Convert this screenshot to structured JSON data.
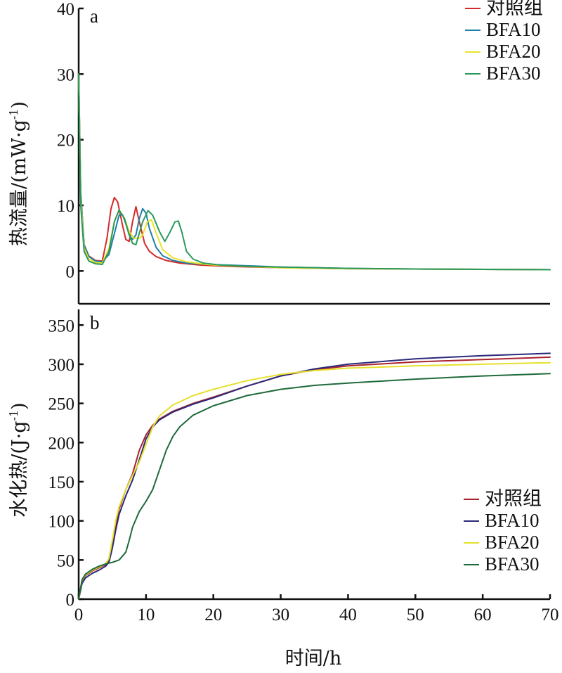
{
  "chart_data": [
    {
      "type": "line",
      "panel_label": "a",
      "ylabel": "热流量/(mW·g",
      "ylabel_sup": "-1",
      "ylabel_close": ")",
      "xlim": [
        0,
        70
      ],
      "ylim": [
        -5,
        40
      ],
      "yticks": [
        0,
        10,
        20,
        30,
        40
      ],
      "legend_position": "top-right",
      "series": [
        {
          "name": "对照组",
          "color": "#d62a2a",
          "x": [
            0,
            0.3,
            0.8,
            1.5,
            2.5,
            3.5,
            4.2,
            4.8,
            5.3,
            5.8,
            6.5,
            7.0,
            7.5,
            8.0,
            8.5,
            9.0,
            9.8,
            10.5,
            11.5,
            13,
            15,
            18,
            22,
            30,
            40,
            50,
            60,
            70
          ],
          "y": [
            30,
            12,
            4,
            2.3,
            1.6,
            1.5,
            5,
            9.5,
            11.2,
            10.5,
            7,
            4.8,
            4.5,
            7.5,
            9.8,
            7.5,
            4.2,
            3.0,
            2.2,
            1.6,
            1.2,
            0.9,
            0.7,
            0.5,
            0.35,
            0.3,
            0.25,
            0.2
          ]
        },
        {
          "name": "BFA10",
          "color": "#1f7fa8",
          "x": [
            0,
            0.3,
            0.8,
            1.5,
            2.5,
            3.5,
            4.5,
            5.5,
            6.0,
            6.5,
            7.0,
            7.5,
            8.0,
            8.5,
            9.0,
            9.5,
            10.0,
            10.5,
            11.5,
            12.5,
            14,
            16,
            19,
            22,
            30,
            40,
            50,
            60,
            70
          ],
          "y": [
            30,
            12,
            4,
            2.2,
            1.5,
            1.4,
            2.5,
            6.5,
            8.5,
            8.6,
            7.2,
            5.5,
            4.8,
            5.5,
            8.0,
            9.5,
            8.8,
            6.5,
            3.6,
            2.3,
            1.6,
            1.2,
            1.0,
            0.9,
            0.6,
            0.4,
            0.3,
            0.25,
            0.2
          ]
        },
        {
          "name": "BFA20",
          "color": "#e8e32a",
          "x": [
            0,
            0.3,
            0.8,
            1.5,
            2.5,
            3.5,
            4.5,
            5.3,
            6.0,
            6.8,
            7.5,
            8.2,
            9.0,
            9.5,
            10.2,
            10.8,
            11.5,
            12.5,
            14,
            16,
            19,
            22,
            30,
            40,
            50,
            60,
            70
          ],
          "y": [
            30,
            11,
            3.5,
            1.8,
            1.3,
            1.2,
            3.5,
            7.5,
            9.3,
            8.0,
            6.0,
            5.0,
            5.0,
            5.5,
            7.5,
            7.8,
            5.8,
            3.2,
            2.0,
            1.4,
            1.0,
            0.8,
            0.5,
            0.35,
            0.3,
            0.25,
            0.2
          ]
        },
        {
          "name": "BFA30",
          "color": "#2a9a5a",
          "x": [
            0,
            0.3,
            0.8,
            1.5,
            2.5,
            3.5,
            4.5,
            5.3,
            6.0,
            6.8,
            7.5,
            8.0,
            8.5,
            9.5,
            10.3,
            11.0,
            12.0,
            12.8,
            13.5,
            14.3,
            14.8,
            15.3,
            16.0,
            17.0,
            18.5,
            21,
            25,
            30,
            40,
            50,
            60,
            70
          ],
          "y": [
            30,
            10,
            3.0,
            1.5,
            1.1,
            1.0,
            3.0,
            7.5,
            9.3,
            8.0,
            5.5,
            4.2,
            4.0,
            7.5,
            9.2,
            8.5,
            6.0,
            4.5,
            5.8,
            7.5,
            7.6,
            6.0,
            3.0,
            1.8,
            1.2,
            0.9,
            0.7,
            0.6,
            0.4,
            0.3,
            0.25,
            0.2
          ]
        }
      ]
    },
    {
      "type": "line",
      "panel_label": "b",
      "ylabel": "水化热/(J·g",
      "ylabel_sup": "-1",
      "ylabel_close": ")",
      "xlabel": "时间/h",
      "xlim": [
        0,
        70
      ],
      "xticks": [
        0,
        10,
        20,
        30,
        40,
        50,
        60,
        70
      ],
      "ylim": [
        0,
        370
      ],
      "yticks": [
        0,
        50,
        100,
        150,
        200,
        250,
        300,
        350
      ],
      "legend_position": "bottom-right",
      "series": [
        {
          "name": "对照组",
          "color": "#a8232f",
          "x": [
            0,
            0.5,
            1,
            2,
            3,
            4,
            4.5,
            5,
            5.5,
            6,
            7,
            8,
            9,
            10,
            11,
            12,
            14,
            17,
            20,
            25,
            30,
            35,
            40,
            50,
            60,
            70
          ],
          "y": [
            0,
            22,
            30,
            36,
            40,
            44,
            50,
            70,
            95,
            115,
            140,
            160,
            190,
            210,
            222,
            230,
            240,
            250,
            258,
            272,
            285,
            293,
            298,
            303,
            306,
            309
          ]
        },
        {
          "name": "BFA10",
          "color": "#2a2a7a",
          "x": [
            0,
            0.5,
            1,
            2,
            3,
            4,
            4.5,
            5,
            5.5,
            6,
            7,
            8,
            9,
            10,
            11,
            12,
            14,
            17,
            20,
            25,
            30,
            35,
            40,
            50,
            60,
            70
          ],
          "y": [
            0,
            20,
            27,
            33,
            37,
            42,
            47,
            65,
            88,
            108,
            132,
            152,
            178,
            205,
            220,
            229,
            239,
            249,
            257,
            272,
            285,
            294,
            300,
            307,
            311,
            314
          ]
        },
        {
          "name": "BFA20",
          "color": "#e6e02a",
          "x": [
            0,
            0.5,
            1,
            2,
            3,
            4,
            4.5,
            5,
            5.5,
            6,
            7,
            8,
            9,
            10,
            11,
            12,
            14,
            17,
            20,
            25,
            30,
            35,
            40,
            50,
            60,
            70
          ],
          "y": [
            0,
            24,
            31,
            37,
            41,
            45,
            52,
            75,
            100,
            118,
            140,
            158,
            175,
            198,
            220,
            234,
            248,
            260,
            268,
            279,
            287,
            292,
            295,
            298,
            300,
            302
          ]
        },
        {
          "name": "BFA30",
          "color": "#1f6a3a",
          "x": [
            0,
            0.5,
            1,
            2,
            3,
            4,
            5,
            6,
            7,
            7.5,
            8,
            9,
            10,
            11,
            12,
            13,
            14,
            15,
            17,
            20,
            25,
            30,
            35,
            40,
            50,
            60,
            70
          ],
          "y": [
            0,
            25,
            32,
            38,
            42,
            45,
            47,
            50,
            60,
            75,
            92,
            112,
            125,
            140,
            165,
            190,
            208,
            220,
            235,
            247,
            260,
            268,
            273,
            276,
            281,
            285,
            288
          ]
        }
      ]
    }
  ]
}
